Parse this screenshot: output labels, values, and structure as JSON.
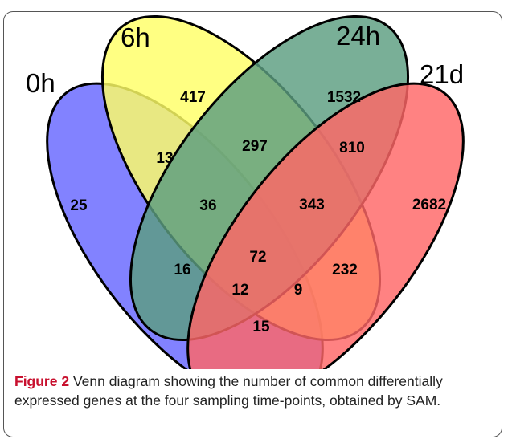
{
  "sets": [
    {
      "id": "0h",
      "label": "0h",
      "color": "#6666ff"
    },
    {
      "id": "6h",
      "label": "6h",
      "color": "#ffff66"
    },
    {
      "id": "24h",
      "label": "24h",
      "color": "#5c9e80"
    },
    {
      "id": "21d",
      "label": "21d",
      "color": "#ff6666"
    }
  ],
  "regions": [
    {
      "sets": [
        "6h"
      ],
      "value": "417"
    },
    {
      "sets": [
        "24h"
      ],
      "value": "1532"
    },
    {
      "sets": [
        "0h"
      ],
      "value": "25"
    },
    {
      "sets": [
        "21d"
      ],
      "value": "2682"
    },
    {
      "sets": [
        "0h",
        "6h"
      ],
      "value": "13"
    },
    {
      "sets": [
        "6h",
        "24h"
      ],
      "value": "297"
    },
    {
      "sets": [
        "24h",
        "21d"
      ],
      "value": "810"
    },
    {
      "sets": [
        "0h",
        "6h",
        "24h"
      ],
      "value": "36"
    },
    {
      "sets": [
        "6h",
        "24h",
        "21d"
      ],
      "value": "343"
    },
    {
      "sets": [
        "0h",
        "24h"
      ],
      "value": "16"
    },
    {
      "sets": [
        "0h",
        "6h",
        "24h",
        "21d"
      ],
      "value": "72"
    },
    {
      "sets": [
        "6h",
        "21d"
      ],
      "value": "232"
    },
    {
      "sets": [
        "0h",
        "24h",
        "21d"
      ],
      "value": "12"
    },
    {
      "sets": [
        "0h",
        "6h",
        "21d"
      ],
      "value": "9"
    },
    {
      "sets": [
        "0h",
        "21d"
      ],
      "value": "15"
    }
  ],
  "caption": {
    "figure_number": "Figure 2",
    "text": " Venn diagram showing the number of common differentially expressed genes at the four sampling time-points, obtained by SAM."
  }
}
